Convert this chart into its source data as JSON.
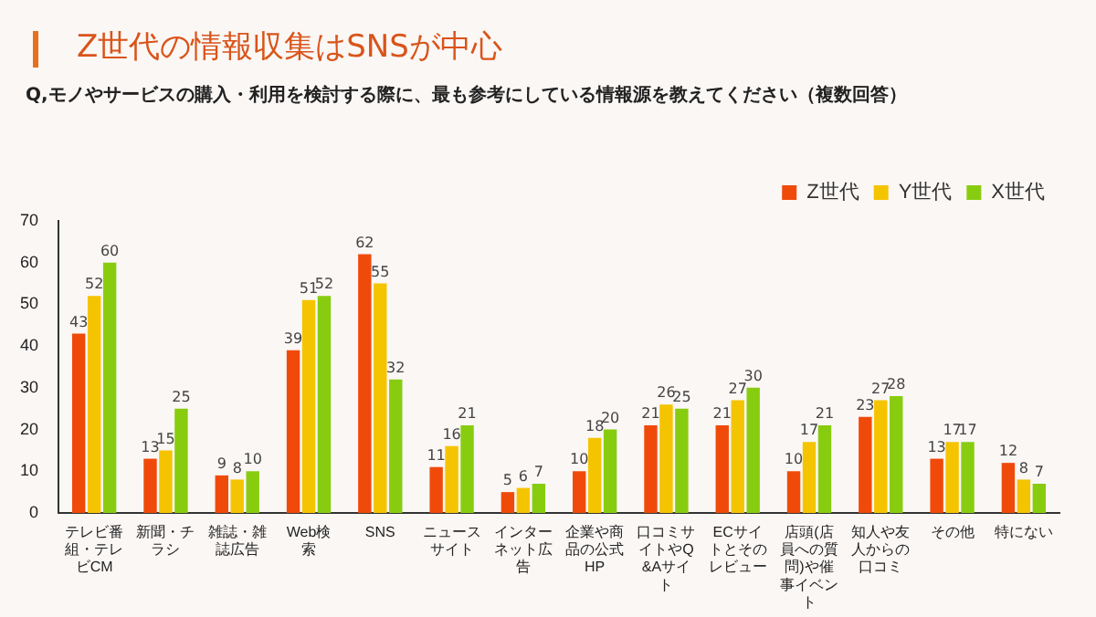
{
  "chart_data": {
    "type": "bar",
    "title": "Z世代の情報収集はSNSが中心",
    "subtitle": "Q,モノやサービスの購入・利用を検討する際に、最も参考にしている情報源を教えてください（複数回答）",
    "categories": [
      "テレビ番組・テレビCM",
      "新聞・チラシ",
      "雑誌・雑誌広告",
      "Web検索",
      "SNS",
      "ニュースサイト",
      "インターネット広告",
      "企業や商品の公式HP",
      "口コミサイトやQ&Aサイト",
      "ECサイトとそのレビュー",
      "店頭(店員への質問)や催事イベント",
      "知人や友人からの口コミ",
      "その他",
      "特にない"
    ],
    "series": [
      {
        "name": "Z世代",
        "color": "#f04a0a",
        "values": [
          43,
          13,
          9,
          39,
          62,
          11,
          5,
          10,
          21,
          21,
          10,
          23,
          13,
          12
        ]
      },
      {
        "name": "Y世代",
        "color": "#f5c400",
        "values": [
          52,
          15,
          8,
          51,
          55,
          16,
          6,
          18,
          26,
          27,
          17,
          27,
          17,
          8
        ]
      },
      {
        "name": "X世代",
        "color": "#88cc10",
        "values": [
          60,
          25,
          10,
          52,
          32,
          21,
          7,
          20,
          25,
          30,
          21,
          28,
          17,
          7
        ]
      }
    ],
    "ylim": [
      0,
      70
    ],
    "yticks": [
      0,
      10,
      20,
      30,
      40,
      50,
      60,
      70
    ],
    "grid": false,
    "legend": "top right",
    "data_labels": true
  }
}
